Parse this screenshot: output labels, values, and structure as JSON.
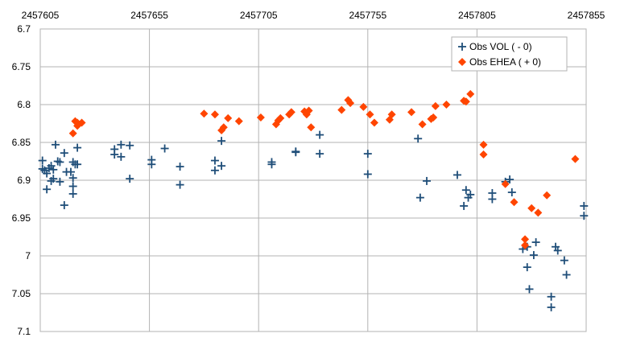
{
  "chart_data": {
    "type": "scatter",
    "title": "",
    "xlabel": "",
    "ylabel": "",
    "xlim": [
      2457605,
      2457855
    ],
    "ylim": [
      6.7,
      7.1
    ],
    "y_inverted": true,
    "x_ticks": [
      2457605,
      2457655,
      2457705,
      2457755,
      2457805,
      2457855
    ],
    "x_tick_labels": [
      "2457605",
      "2457655",
      "2457705",
      "2457755",
      "2457805",
      "2457855"
    ],
    "y_ticks": [
      6.7,
      6.75,
      6.8,
      6.85,
      6.9,
      6.95,
      7,
      7.05,
      7.1
    ],
    "y_tick_labels": [
      "6.7",
      "6.75",
      "6.8",
      "6.85",
      "6.9",
      "6.95",
      "7",
      "7.05",
      "7.1"
    ],
    "x_axis_position": "top",
    "grid": true,
    "legend_position": "top-right",
    "series": [
      {
        "name": "Obs VOL ( - 0)",
        "marker": "plus",
        "color": "#1f4e79",
        "points": [
          [
            2457606,
            6.874
          ],
          [
            2457606,
            6.885
          ],
          [
            2457607,
            6.887
          ],
          [
            2457608,
            6.891
          ],
          [
            2457608,
            6.912
          ],
          [
            2457609,
            6.884
          ],
          [
            2457610,
            6.881
          ],
          [
            2457610,
            6.901
          ],
          [
            2457611,
            6.886
          ],
          [
            2457611,
            6.898
          ],
          [
            2457612,
            6.853
          ],
          [
            2457613,
            6.875
          ],
          [
            2457614,
            6.876
          ],
          [
            2457614,
            6.902
          ],
          [
            2457616,
            6.933
          ],
          [
            2457616,
            6.864
          ],
          [
            2457617,
            6.889
          ],
          [
            2457619,
            6.889
          ],
          [
            2457620,
            6.897
          ],
          [
            2457620,
            6.876
          ],
          [
            2457620,
            6.908
          ],
          [
            2457620,
            6.918
          ],
          [
            2457621,
            6.879
          ],
          [
            2457622,
            6.857
          ],
          [
            2457622,
            6.879
          ],
          [
            2457639,
            6.859
          ],
          [
            2457639,
            6.866
          ],
          [
            2457642,
            6.853
          ],
          [
            2457642,
            6.869
          ],
          [
            2457646,
            6.854
          ],
          [
            2457646,
            6.898
          ],
          [
            2457656,
            6.873
          ],
          [
            2457656,
            6.879
          ],
          [
            2457662,
            6.858
          ],
          [
            2457669,
            6.882
          ],
          [
            2457669,
            6.906
          ],
          [
            2457685,
            6.874
          ],
          [
            2457685,
            6.887
          ],
          [
            2457688,
            6.848
          ],
          [
            2457688,
            6.881
          ],
          [
            2457711,
            6.879
          ],
          [
            2457711,
            6.876
          ],
          [
            2457722,
            6.862
          ],
          [
            2457722,
            6.863
          ],
          [
            2457733,
            6.84
          ],
          [
            2457733,
            6.865
          ],
          [
            2457755,
            6.865
          ],
          [
            2457755,
            6.892
          ],
          [
            2457778,
            6.845
          ],
          [
            2457779,
            6.923
          ],
          [
            2457782,
            6.901
          ],
          [
            2457796,
            6.893
          ],
          [
            2457799,
            6.934
          ],
          [
            2457800,
            6.913
          ],
          [
            2457801,
            6.923
          ],
          [
            2457802,
            6.919
          ],
          [
            2457812,
            6.917
          ],
          [
            2457812,
            6.925
          ],
          [
            2457818,
            6.902
          ],
          [
            2457820,
            6.899
          ],
          [
            2457821,
            6.916
          ],
          [
            2457826,
            6.991
          ],
          [
            2457828,
            6.988
          ],
          [
            2457828,
            7.015
          ],
          [
            2457829,
            7.044
          ],
          [
            2457831,
            6.999
          ],
          [
            2457832,
            6.982
          ],
          [
            2457839,
            7.054
          ],
          [
            2457839,
            7.068
          ],
          [
            2457841,
            6.988
          ],
          [
            2457842,
            6.993
          ],
          [
            2457845,
            7.006
          ],
          [
            2457846,
            7.025
          ],
          [
            2457854,
            6.934
          ],
          [
            2457854,
            6.947
          ]
        ]
      },
      {
        "name": "Obs EHEA ( + 0)",
        "marker": "diamond",
        "color": "#ff4500",
        "points": [
          [
            2457620,
            6.838
          ],
          [
            2457621,
            6.822
          ],
          [
            2457622,
            6.828
          ],
          [
            2457622,
            6.824
          ],
          [
            2457624,
            6.824
          ],
          [
            2457680,
            6.812
          ],
          [
            2457685,
            6.813
          ],
          [
            2457688,
            6.834
          ],
          [
            2457689,
            6.83
          ],
          [
            2457691,
            6.818
          ],
          [
            2457696,
            6.822
          ],
          [
            2457706,
            6.817
          ],
          [
            2457713,
            6.826
          ],
          [
            2457714,
            6.821
          ],
          [
            2457715,
            6.818
          ],
          [
            2457719,
            6.813
          ],
          [
            2457720,
            6.81
          ],
          [
            2457726,
            6.809
          ],
          [
            2457727,
            6.813
          ],
          [
            2457728,
            6.808
          ],
          [
            2457729,
            6.83
          ],
          [
            2457743,
            6.807
          ],
          [
            2457746,
            6.794
          ],
          [
            2457747,
            6.798
          ],
          [
            2457753,
            6.803
          ],
          [
            2457756,
            6.813
          ],
          [
            2457758,
            6.824
          ],
          [
            2457765,
            6.82
          ],
          [
            2457766,
            6.813
          ],
          [
            2457775,
            6.81
          ],
          [
            2457780,
            6.826
          ],
          [
            2457784,
            6.819
          ],
          [
            2457785,
            6.817
          ],
          [
            2457786,
            6.802
          ],
          [
            2457791,
            6.8
          ],
          [
            2457799,
            6.795
          ],
          [
            2457800,
            6.796
          ],
          [
            2457802,
            6.786
          ],
          [
            2457808,
            6.853
          ],
          [
            2457808,
            6.866
          ],
          [
            2457818,
            6.905
          ],
          [
            2457822,
            6.929
          ],
          [
            2457827,
            6.978
          ],
          [
            2457827,
            6.986
          ],
          [
            2457830,
            6.937
          ],
          [
            2457833,
            6.943
          ],
          [
            2457837,
            6.92
          ],
          [
            2457850,
            6.872
          ]
        ]
      }
    ]
  }
}
